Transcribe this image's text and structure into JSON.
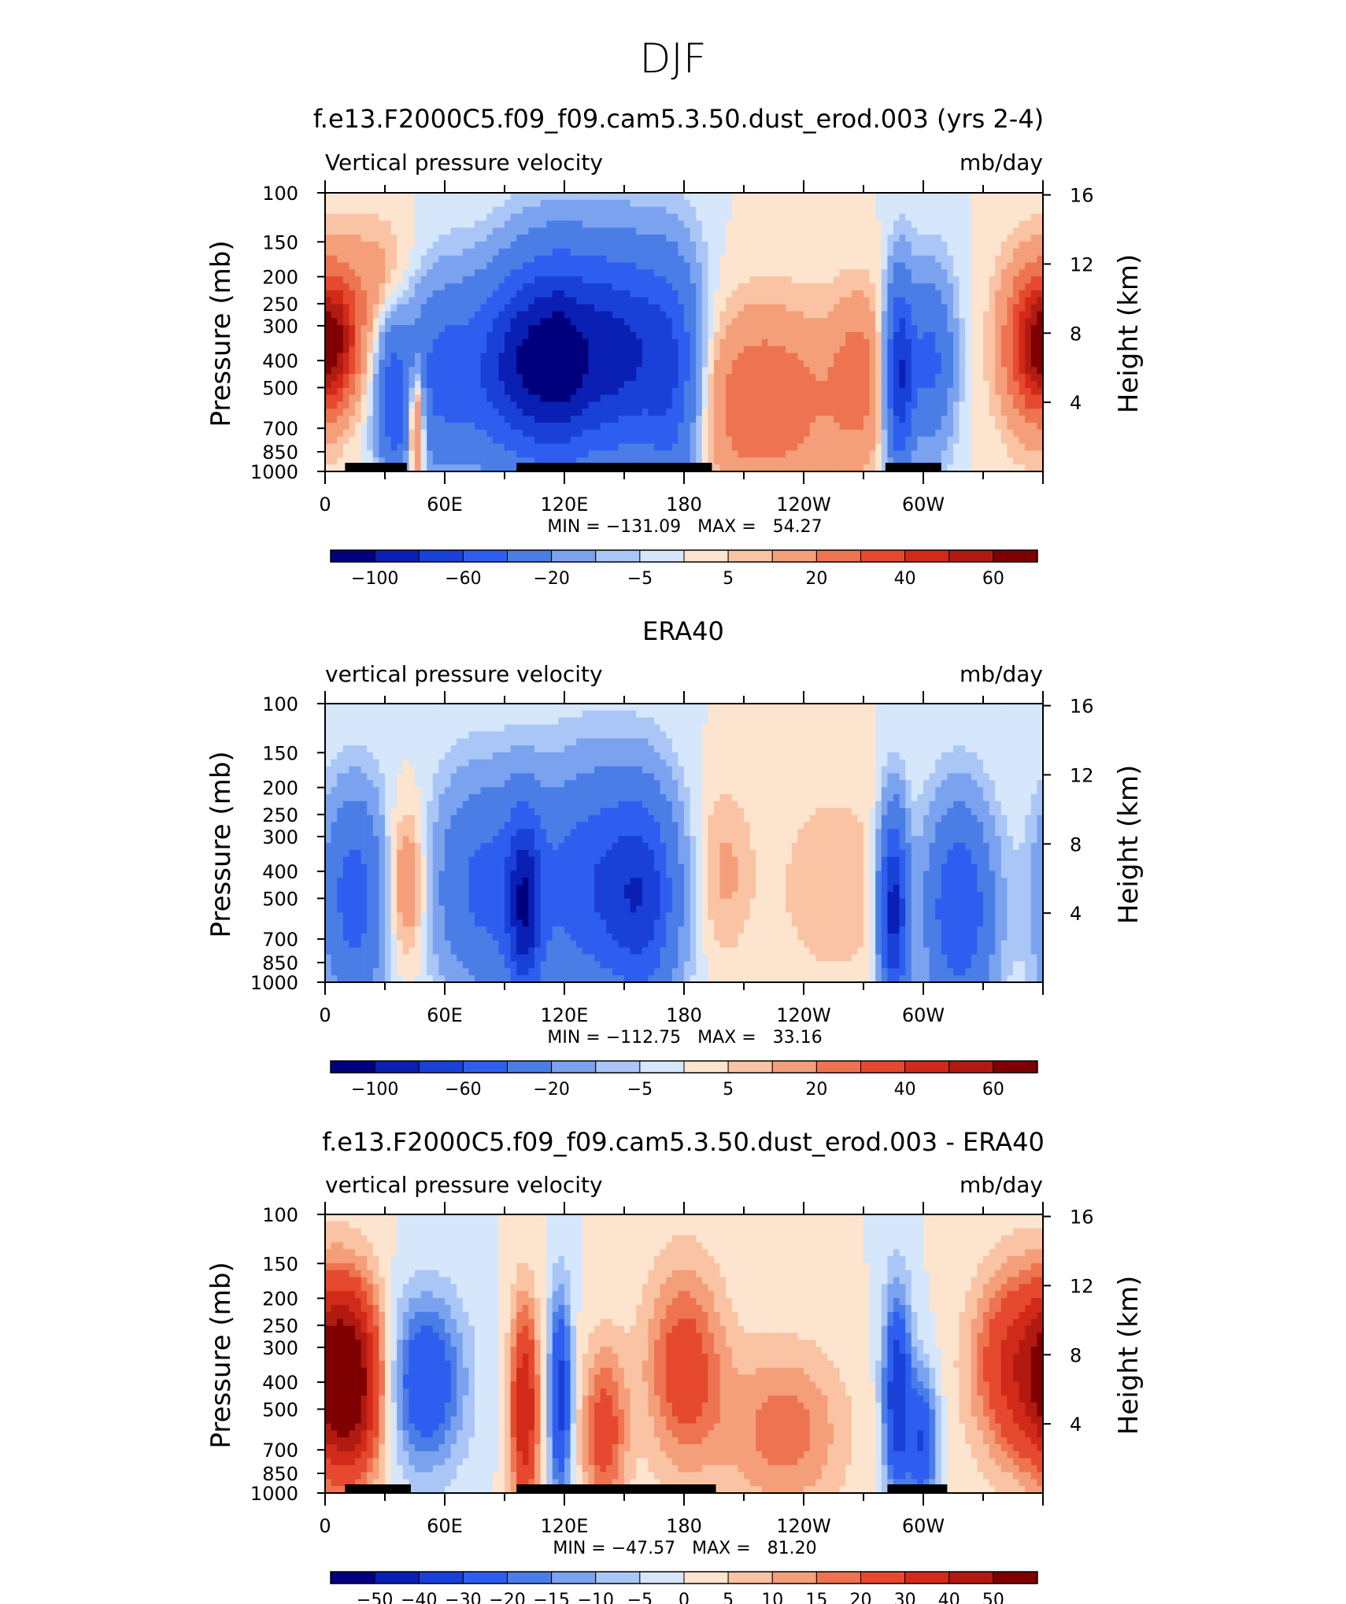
{
  "page_title": "DJF",
  "colors": {
    "blue_scale": [
      "#00007f",
      "#0a1fb4",
      "#1941d8",
      "#2d5ef0",
      "#4a7de6",
      "#7aa2ef",
      "#aac6f6",
      "#d6e6fb"
    ],
    "red_scale": [
      "#fde4cf",
      "#f9c3a4",
      "#f49f79",
      "#ee7451",
      "#e5492e",
      "#d22a18",
      "#b11a10",
      "#7f0000"
    ],
    "land": "#000000"
  },
  "chart_data": [
    {
      "type": "heatmap",
      "title": "f.e13.F2000C5.f09_f09.cam5.3.50.dust_erod.003 (yrs 2-4)",
      "left_label": "Vertical pressure velocity",
      "right_label": "mb/day",
      "ylabel": "Pressure (mb)",
      "ylabel_right": "Height (km)",
      "xlim": [
        0,
        360
      ],
      "y_ticks": [
        "100",
        "150",
        "200",
        "250",
        "300",
        "400",
        "500",
        "700",
        "850",
        "1000"
      ],
      "y_tick_values": [
        100,
        150,
        200,
        250,
        300,
        400,
        500,
        700,
        850,
        1000
      ],
      "right_ticks": [
        "16",
        "12",
        "8",
        "4"
      ],
      "x_ticks": [
        "0",
        "60E",
        "120E",
        "180",
        "120W",
        "60W"
      ],
      "min_max_text": "MIN = −131.09   MAX =   54.27",
      "min": -131.09,
      "max": 54.27,
      "colorbar_levels": [
        -120,
        -100,
        -80,
        -60,
        -40,
        -20,
        -10,
        -5,
        0,
        5,
        10,
        20,
        30,
        40,
        50,
        60,
        70
      ],
      "colorbar_labels": [
        "−100",
        "−60",
        "−20",
        "−5",
        "5",
        "20",
        "40",
        "60"
      ],
      "land_segments_lon": [
        [
          10,
          41
        ],
        [
          96,
          106
        ],
        [
          106,
          194
        ],
        [
          281,
          309
        ]
      ],
      "blobs": [
        {
          "lon": 5,
          "p": 350,
          "w": 10,
          "h": 0.35,
          "v": 40
        },
        {
          "lon": 26,
          "p": 200,
          "w": 14,
          "h": 0.35,
          "v": 15
        },
        {
          "lon": 34,
          "p": 600,
          "w": 5,
          "h": 0.45,
          "v": -40
        },
        {
          "lon": 46,
          "p": 650,
          "w": 3,
          "h": 0.35,
          "v": 50
        },
        {
          "lon": 62,
          "p": 450,
          "w": 20,
          "h": 0.55,
          "v": -50
        },
        {
          "lon": 95,
          "p": 400,
          "w": 12,
          "h": 0.55,
          "v": -60
        },
        {
          "lon": 115,
          "p": 400,
          "w": 12,
          "h": 0.6,
          "v": -70
        },
        {
          "lon": 145,
          "p": 380,
          "w": 22,
          "h": 0.6,
          "v": -90
        },
        {
          "lon": 175,
          "p": 500,
          "w": 10,
          "h": 0.7,
          "v": -40
        },
        {
          "lon": 218,
          "p": 560,
          "w": 30,
          "h": 0.55,
          "v": 30
        },
        {
          "lon": 268,
          "p": 450,
          "w": 10,
          "h": 0.5,
          "v": 20
        },
        {
          "lon": 288,
          "p": 450,
          "w": 5,
          "h": 0.55,
          "v": -80
        },
        {
          "lon": 304,
          "p": 400,
          "w": 8,
          "h": 0.5,
          "v": -45
        },
        {
          "lon": 355,
          "p": 350,
          "w": 12,
          "h": 0.5,
          "v": 40
        }
      ]
    },
    {
      "type": "heatmap",
      "title": "ERA40",
      "left_label": "vertical pressure velocity",
      "right_label": "mb/day",
      "ylabel": "Pressure (mb)",
      "ylabel_right": "Height (km)",
      "xlim": [
        0,
        360
      ],
      "y_ticks": [
        "100",
        "150",
        "200",
        "250",
        "300",
        "400",
        "500",
        "700",
        "850",
        "1000"
      ],
      "y_tick_values": [
        100,
        150,
        200,
        250,
        300,
        400,
        500,
        700,
        850,
        1000
      ],
      "right_ticks": [
        "16",
        "12",
        "8",
        "4"
      ],
      "x_ticks": [
        "0",
        "60E",
        "120E",
        "180",
        "120W",
        "60W"
      ],
      "min_max_text": "MIN = −112.75   MAX =   33.16",
      "min": -112.75,
      "max": 33.16,
      "colorbar_levels": [
        -120,
        -100,
        -80,
        -60,
        -40,
        -20,
        -10,
        -5,
        0,
        5,
        10,
        20,
        30,
        40,
        50,
        60,
        70
      ],
      "colorbar_labels": [
        "−100",
        "−60",
        "−20",
        "−5",
        "5",
        "20",
        "40",
        "60"
      ],
      "land_segments_lon": [],
      "blobs": [
        {
          "lon": 15,
          "p": 500,
          "w": 12,
          "h": 0.6,
          "v": -50
        },
        {
          "lon": 40,
          "p": 450,
          "w": 8,
          "h": 0.45,
          "v": 25
        },
        {
          "lon": 80,
          "p": 450,
          "w": 18,
          "h": 0.6,
          "v": -45
        },
        {
          "lon": 100,
          "p": 550,
          "w": 6,
          "h": 0.55,
          "v": -70
        },
        {
          "lon": 135,
          "p": 450,
          "w": 22,
          "h": 0.65,
          "v": -55
        },
        {
          "lon": 160,
          "p": 500,
          "w": 12,
          "h": 0.6,
          "v": -50
        },
        {
          "lon": 200,
          "p": 400,
          "w": 10,
          "h": 0.5,
          "v": 12
        },
        {
          "lon": 255,
          "p": 450,
          "w": 20,
          "h": 0.55,
          "v": 10
        },
        {
          "lon": 285,
          "p": 550,
          "w": 5,
          "h": 0.55,
          "v": -90
        },
        {
          "lon": 318,
          "p": 550,
          "w": 12,
          "h": 0.6,
          "v": -60
        }
      ]
    },
    {
      "type": "heatmap",
      "title": "f.e13.F2000C5.f09_f09.cam5.3.50.dust_erod.003 - ERA40",
      "left_label": "vertical pressure velocity",
      "right_label": "mb/day",
      "ylabel": "Pressure (mb)",
      "ylabel_right": "Height (km)",
      "xlim": [
        0,
        360
      ],
      "y_ticks": [
        "100",
        "150",
        "200",
        "250",
        "300",
        "400",
        "500",
        "700",
        "850",
        "1000"
      ],
      "y_tick_values": [
        100,
        150,
        200,
        250,
        300,
        400,
        500,
        700,
        850,
        1000
      ],
      "right_ticks": [
        "16",
        "12",
        "8",
        "4"
      ],
      "x_ticks": [
        "0",
        "60E",
        "120E",
        "180",
        "120W",
        "60W"
      ],
      "min_max_text": "MIN = −47.57   MAX =   81.20",
      "min": -47.57,
      "max": 81.2,
      "colorbar_levels": [
        -60,
        -50,
        -40,
        -30,
        -20,
        -15,
        -10,
        -5,
        0,
        5,
        10,
        15,
        20,
        30,
        40,
        50,
        60
      ],
      "colorbar_labels": [
        "−50",
        "−40",
        "−30",
        "−20",
        "−15",
        "−10",
        "−5",
        "0",
        "5",
        "10",
        "15",
        "20",
        "30",
        "40",
        "50"
      ],
      "land_segments_lon": [
        [
          10,
          43
        ],
        [
          96,
          196
        ],
        [
          282,
          312
        ]
      ],
      "blobs": [
        {
          "lon": 12,
          "p": 400,
          "w": 12,
          "h": 0.55,
          "v": 60
        },
        {
          "lon": 50,
          "p": 400,
          "w": 14,
          "h": 0.5,
          "v": -30
        },
        {
          "lon": 100,
          "p": 500,
          "w": 5,
          "h": 0.6,
          "v": 40
        },
        {
          "lon": 118,
          "p": 450,
          "w": 4,
          "h": 0.6,
          "v": -35
        },
        {
          "lon": 140,
          "p": 600,
          "w": 8,
          "h": 0.5,
          "v": 25
        },
        {
          "lon": 180,
          "p": 350,
          "w": 14,
          "h": 0.6,
          "v": 25
        },
        {
          "lon": 230,
          "p": 600,
          "w": 22,
          "h": 0.5,
          "v": 18
        },
        {
          "lon": 287,
          "p": 450,
          "w": 5,
          "h": 0.6,
          "v": -40
        },
        {
          "lon": 300,
          "p": 650,
          "w": 5,
          "h": 0.4,
          "v": -30
        },
        {
          "lon": 348,
          "p": 350,
          "w": 16,
          "h": 0.55,
          "v": 35
        }
      ]
    }
  ]
}
